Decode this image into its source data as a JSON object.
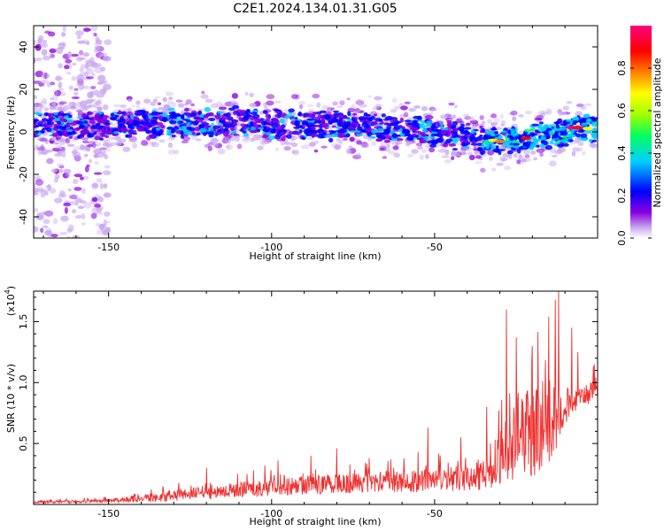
{
  "title": "C2E1.2024.134.01.31.G05",
  "chart_data": [
    {
      "type": "heatmap",
      "xlabel": "Height of straight line (km)",
      "ylabel": "Frequency (Hz)",
      "xlim": [
        -173,
        0
      ],
      "ylim": [
        -50,
        50
      ],
      "x_ticks": [
        -150,
        -100,
        -50
      ],
      "x_tick_labels": [
        "-150",
        "-100",
        "-50"
      ],
      "y_ticks": [
        -40,
        -20,
        0,
        20,
        40
      ],
      "y_tick_labels": [
        "-40",
        "-20",
        "0",
        "20",
        "40"
      ],
      "colorbar": {
        "label": "Normalized spectral amplitude",
        "range": [
          0,
          1
        ],
        "ticks": [
          0.0,
          0.2,
          0.4,
          0.6,
          0.8
        ],
        "tick_labels": [
          "0.0",
          "0.2",
          "0.4",
          "0.6",
          "0.8"
        ],
        "colors": [
          "#ffffff",
          "#c8a8f0",
          "#8a00e0",
          "#0000ff",
          "#00d0ff",
          "#00ff60",
          "#a0ff00",
          "#ffff00",
          "#ff8000",
          "#ff0000",
          "#ff0080"
        ]
      },
      "ridge": {
        "x": [
          -172,
          -160,
          -150,
          -140,
          -130,
          -120,
          -110,
          -100,
          -90,
          -80,
          -70,
          -60,
          -50,
          -45,
          -40,
          -35,
          -30,
          -25,
          -20,
          -15,
          -10,
          -5,
          0
        ],
        "frequency": [
          4,
          3,
          3,
          4,
          4,
          4,
          5,
          4,
          3,
          3,
          2,
          1,
          0,
          -1,
          -3,
          -4,
          -5,
          -4,
          -3,
          -2,
          0,
          2,
          1
        ]
      },
      "scatter_region": {
        "x": [
          -173,
          -150
        ],
        "frequency": [
          -50,
          50
        ]
      }
    },
    {
      "type": "line",
      "xlabel": "Height of straight line (km)",
      "ylabel": "SNR (10 * v/v)",
      "y_multiplier_label": "(x10",
      "y_multiplier_exponent": "4",
      "xlim": [
        -173,
        0
      ],
      "ylim": [
        0,
        1.75
      ],
      "x_ticks": [
        -150,
        -100,
        -50
      ],
      "x_tick_labels": [
        "-150",
        "-100",
        "-50"
      ],
      "y_ticks": [
        0.5,
        1.0,
        1.5
      ],
      "y_tick_labels": [
        "0.5",
        "1.0",
        "1.5"
      ],
      "series": [
        {
          "color": "#ee3030",
          "envelope": {
            "x": [
              -173,
              -150,
              -140,
              -130,
              -120,
              -110,
              -100,
              -90,
              -80,
              -70,
              -60,
              -50,
              -40,
              -32,
              -30,
              -25,
              -20,
              -15,
              -10,
              -5,
              0
            ],
            "base": [
              0.02,
              0.03,
              0.05,
              0.07,
              0.1,
              0.12,
              0.14,
              0.16,
              0.17,
              0.18,
              0.19,
              0.2,
              0.22,
              0.25,
              0.4,
              0.55,
              0.6,
              0.65,
              0.8,
              0.9,
              0.95
            ],
            "spread": [
              0.02,
              0.03,
              0.07,
              0.09,
              0.12,
              0.13,
              0.15,
              0.16,
              0.16,
              0.17,
              0.18,
              0.2,
              0.22,
              0.25,
              0.5,
              0.7,
              0.8,
              0.75,
              0.3,
              0.2,
              0.2
            ]
          },
          "spikes": [
            {
              "x": -120,
              "y": 0.3
            },
            {
              "x": -102,
              "y": 0.32
            },
            {
              "x": -98,
              "y": 0.36
            },
            {
              "x": -88,
              "y": 0.4
            },
            {
              "x": -80,
              "y": 0.46
            },
            {
              "x": -70,
              "y": 0.38
            },
            {
              "x": -55,
              "y": 0.43
            },
            {
              "x": -52,
              "y": 0.63
            },
            {
              "x": -42,
              "y": 0.55
            },
            {
              "x": -34,
              "y": 0.8
            },
            {
              "x": -28,
              "y": 1.6
            },
            {
              "x": -25,
              "y": 1.37
            },
            {
              "x": -20,
              "y": 1.3
            },
            {
              "x": -15,
              "y": 1.54
            },
            {
              "x": -13,
              "y": 1.68
            },
            {
              "x": -12,
              "y": 1.75
            },
            {
              "x": -8,
              "y": 1.45
            },
            {
              "x": -6,
              "y": 1.25
            },
            {
              "x": -1,
              "y": 1.15
            }
          ]
        }
      ]
    }
  ]
}
